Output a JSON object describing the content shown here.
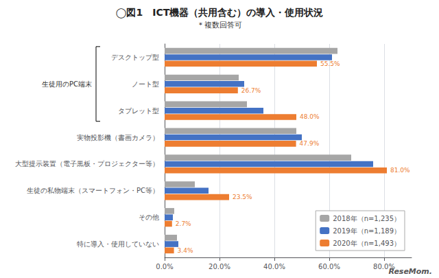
{
  "chart_data": {
    "type": "bar",
    "orientation": "horizontal",
    "title": "◯図1　ICT機器（共用含む）の導入・使用状況",
    "subtitle": "＊複数回答可",
    "categories": [
      "デスクトップ型",
      "ノート型",
      "タブレット型",
      "実物投影機（書画カメラ）",
      "大型提示装置（電子黒板・プロジェクター等）",
      "生徒の私物端末（スマートフォン・PC等）",
      "その他",
      "特に導入・使用していない"
    ],
    "series": [
      {
        "name": "2018年（n=1,235）",
        "color": "#A6A6A6",
        "values": [
          63.0,
          27.0,
          30.0,
          48.0,
          68.0,
          11.0,
          3.5,
          4.5
        ]
      },
      {
        "name": "2019年（n=1,189）",
        "color": "#4472C4",
        "values": [
          61.0,
          29.0,
          36.0,
          50.0,
          76.0,
          16.0,
          3.0,
          5.0
        ]
      },
      {
        "name": "2020年（n=1,493）",
        "color": "#ED7D31",
        "values": [
          55.5,
          26.7,
          48.0,
          47.9,
          81.0,
          23.5,
          2.7,
          3.4
        ],
        "data_labels": true,
        "value_labels": [
          "55.5%",
          "26.7%",
          "48.0%",
          "47.9%",
          "81.0%",
          "23.5%",
          "2.7%",
          "3.4%"
        ]
      }
    ],
    "xlim": [
      0,
      90
    ],
    "xticks": [
      {
        "value": 0,
        "label": "0.0%"
      },
      {
        "value": 20,
        "label": "20.0%"
      },
      {
        "value": 40,
        "label": "40.0%"
      },
      {
        "value": 60,
        "label": "60.0%"
      },
      {
        "value": 80,
        "label": "80.0%"
      }
    ],
    "grid": true,
    "legend": "lower right",
    "annotations": [
      {
        "text": "生徒用のPC端末",
        "from": "デスクトップ型",
        "to": "タブレット型"
      },
      {
        "text": "ReseMom."
      }
    ]
  }
}
